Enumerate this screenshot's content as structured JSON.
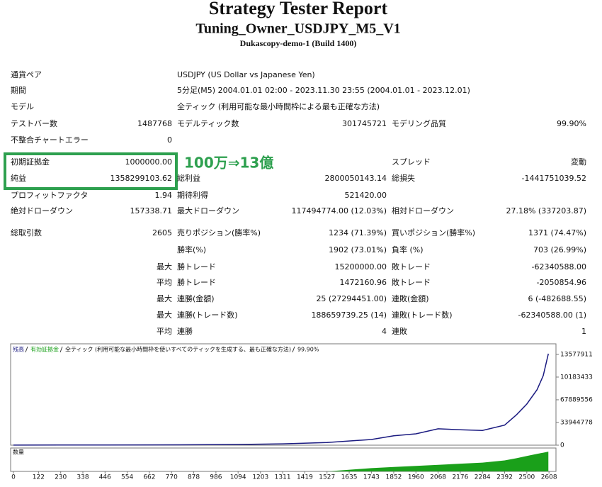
{
  "header": {
    "title": "Strategy Tester Report",
    "subtitle": "Tuning_Owner_USDJPY_M5_V1",
    "server": "Dukascopy-demo-1 (Build 1400)"
  },
  "rows": [
    [
      "通貨ペア",
      null,
      "USDJPY (US Dollar vs Japanese Yen)",
      null,
      null,
      null
    ],
    [
      "期間",
      null,
      "5分足(M5) 2004.01.01 02:00 - 2023.11.30 23:55 (2004.01.01 - 2023.12.01)",
      null,
      null,
      null
    ],
    [
      "モデル",
      null,
      "全ティック (利用可能な最小時間枠による最も正確な方法)",
      null,
      null,
      null
    ],
    [
      "テストバー数",
      "1487768",
      "モデルティック数",
      "301745721",
      "モデリング品質",
      "99.90%"
    ],
    [
      "不整合チャートエラー",
      "0",
      null,
      null,
      null,
      null
    ],
    [
      "初期証拠金",
      "1000000.00",
      null,
      null,
      "スプレッド",
      "変動"
    ],
    [
      "純益",
      "1358299103.62",
      "総利益",
      "2800050143.14",
      "総損失",
      "-1441751039.52"
    ],
    [
      "プロフィットファクタ",
      "1.94",
      "期待利得",
      "521420.00",
      null,
      null
    ],
    [
      "絶対ドローダウン",
      "157338.71",
      "最大ドローダウン",
      "117494774.00 (12.03%)",
      "相対ドローダウン",
      "27.18% (337203.87)"
    ],
    [
      "総取引数",
      "2605",
      "売りポジション(勝率%)",
      "1234 (71.39%)",
      "買いポジション(勝率%)",
      "1371 (74.47%)"
    ],
    [
      null,
      null,
      "勝率(%)",
      "1902 (73.01%)",
      "負率 (%)",
      "703 (26.99%)"
    ],
    [
      null,
      "最大",
      "勝トレード",
      "15200000.00",
      "敗トレード",
      "-62340588.00"
    ],
    [
      null,
      "平均",
      "勝トレード",
      "1472160.96",
      "敗トレード",
      "-2050854.96"
    ],
    [
      null,
      "最大",
      "連勝(金額)",
      "25 (27294451.00)",
      "連敗(金額)",
      "6 (-482688.55)"
    ],
    [
      null,
      "最大",
      "連勝(トレード数)",
      "188659739.25 (14)",
      "連敗(トレード数)",
      "-62340588.00 (1)"
    ],
    [
      null,
      "平均",
      "連勝",
      "4",
      "連敗",
      "1"
    ]
  ],
  "annotation": "100万⇒13億",
  "chart_data": {
    "type": "line",
    "model": "全ティック (利用可能な最小時間枠を使いすべてのティックを生成する、最も正確な方法)",
    "quality": "99.90%",
    "x": [
      0,
      230,
      446,
      662,
      878,
      1094,
      1311,
      1527,
      1743,
      1852,
      1960,
      2068,
      2176,
      2284,
      2392,
      2450,
      2500,
      2550,
      2580,
      2605
    ],
    "series": [
      {
        "name": "残高",
        "color": "#1a1a80",
        "values": [
          1000000,
          2000000,
          3000000,
          4000000,
          6000000,
          10000000,
          20000000,
          40000000,
          85000000,
          140000000,
          170000000,
          245000000,
          230000000,
          220000000,
          300000000,
          455000000,
          615000000,
          830000000,
          1040000000,
          1368000000
        ]
      },
      {
        "name": "有効証拠金",
        "color": "#1aa01a",
        "values": null
      }
    ],
    "volume": {
      "name": "数量",
      "color": "#1aa01a",
      "values": [
        0,
        0,
        0,
        0,
        0,
        0,
        0,
        0,
        15,
        20,
        25,
        30,
        35,
        40,
        50,
        60,
        70,
        80,
        85,
        90
      ],
      "ylim": [
        0,
        100
      ]
    },
    "xlim": [
      0,
      2642
    ],
    "ylim": [
      0,
      1516000000
    ],
    "xticks": [
      0,
      122,
      230,
      338,
      446,
      554,
      662,
      770,
      878,
      986,
      1094,
      1203,
      1311,
      1419,
      1527,
      1635,
      1743,
      1852,
      1960,
      2068,
      2176,
      2284,
      2392,
      2500,
      2608
    ],
    "yticks": [
      0,
      {
        "value": 339447780,
        "label": "33944778"
      },
      {
        "value": 678895560,
        "label": "67889556"
      },
      {
        "value": 1018343340,
        "label": "10183433"
      },
      {
        "value": 1357791120,
        "label": "13577911"
      }
    ]
  }
}
